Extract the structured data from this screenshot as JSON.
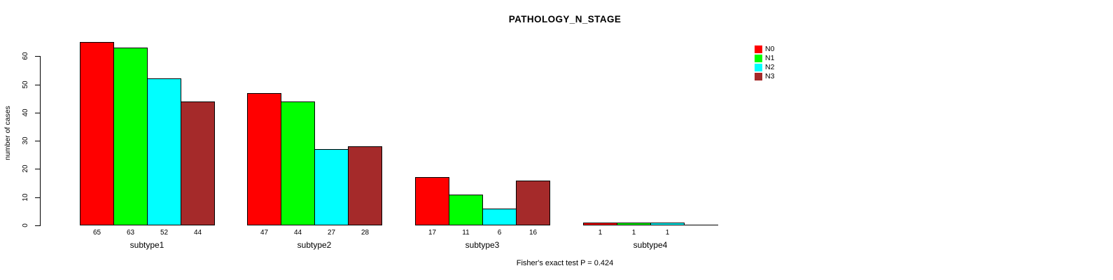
{
  "title": "PATHOLOGY_N_STAGE",
  "ylabel": "number of cases",
  "footer": "Fisher's exact test P = 0.424",
  "chart_data": {
    "type": "bar",
    "title": "PATHOLOGY_N_STAGE",
    "xlabel": "",
    "ylabel": "number of cases",
    "categories": [
      "subtype1",
      "subtype2",
      "subtype3",
      "subtype4"
    ],
    "series": [
      {
        "name": "N0",
        "color": "#FF0000",
        "values": [
          65,
          47,
          17,
          1
        ]
      },
      {
        "name": "N1",
        "color": "#00FF00",
        "values": [
          63,
          44,
          11,
          1
        ]
      },
      {
        "name": "N2",
        "color": "#00FFFF",
        "values": [
          52,
          27,
          6,
          1
        ]
      },
      {
        "name": "N3",
        "color": "#A52A2A",
        "values": [
          44,
          28,
          16,
          0
        ]
      }
    ],
    "bar_labels": [
      [
        "65",
        "63",
        "52",
        "44"
      ],
      [
        "47",
        "44",
        "27",
        "28"
      ],
      [
        "17",
        "11",
        "6",
        "16"
      ],
      [
        "1",
        "1",
        "1",
        ""
      ]
    ],
    "yticks": [
      0,
      10,
      20,
      30,
      40,
      50,
      60
    ],
    "ylim": [
      0,
      66
    ],
    "grid": false,
    "legend_position": "top-right",
    "annotation": "Fisher's exact test P = 0.424",
    "axis_color": "#000000",
    "background_color": "#FFFFFF"
  }
}
